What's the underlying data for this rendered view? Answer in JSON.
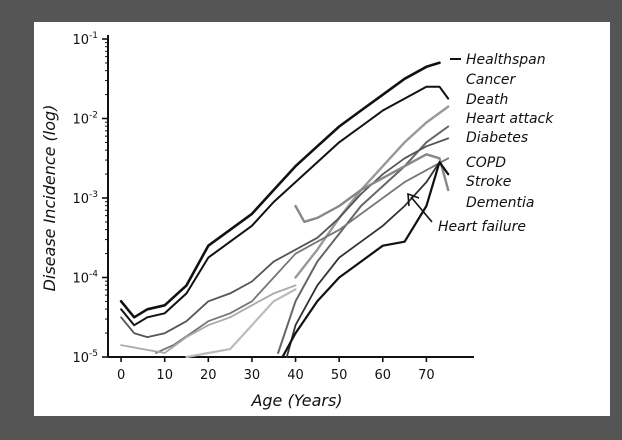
{
  "chart_data": {
    "type": "line",
    "xlabel": "Age (Years)",
    "ylabel": "Disease Incidence (log)",
    "xlim": [
      -3,
      80
    ],
    "ylim": [
      -5,
      -1
    ],
    "y_scale": "log",
    "x_ticks": [
      "0",
      "10",
      "20",
      "30",
      "40",
      "50",
      "60",
      "70"
    ],
    "x_tick_values": [
      0,
      10,
      20,
      30,
      40,
      50,
      60,
      70
    ],
    "y_ticks": [
      {
        "base": "10",
        "exp": "-1",
        "value": -1
      },
      {
        "base": "10",
        "exp": "-2",
        "value": -2
      },
      {
        "base": "10",
        "exp": "-3",
        "value": -3
      },
      {
        "base": "10",
        "exp": "-4",
        "value": -4
      },
      {
        "base": "10",
        "exp": "-5",
        "value": -5
      }
    ],
    "grid": false,
    "series": [
      {
        "name": "Healthspan",
        "color": "#111111",
        "width": 2.6,
        "x": [
          0,
          3,
          6,
          10,
          15,
          20,
          25,
          30,
          35,
          40,
          45,
          50,
          55,
          60,
          65,
          70,
          73
        ],
        "y": [
          -4.3,
          -4.5,
          -4.4,
          -4.35,
          -4.1,
          -3.6,
          -3.4,
          -3.2,
          -2.9,
          -2.6,
          -2.35,
          -2.1,
          -1.9,
          -1.7,
          -1.5,
          -1.35,
          -1.3
        ]
      },
      {
        "name": "Cancer",
        "color": "#111111",
        "width": 2,
        "x": [
          0,
          3,
          6,
          10,
          15,
          20,
          25,
          30,
          35,
          40,
          45,
          50,
          55,
          60,
          65,
          70,
          73,
          75
        ],
        "y": [
          -4.4,
          -4.6,
          -4.5,
          -4.45,
          -4.2,
          -3.75,
          -3.55,
          -3.35,
          -3.05,
          -2.8,
          -2.55,
          -2.3,
          -2.1,
          -1.9,
          -1.75,
          -1.6,
          -1.6,
          -1.75
        ]
      },
      {
        "name": "Death",
        "color": "#999999",
        "width": 2.4,
        "x": [
          40,
          45,
          50,
          55,
          60,
          65,
          70,
          75
        ],
        "y": [
          -4.0,
          -3.65,
          -3.25,
          -2.9,
          -2.6,
          -2.3,
          -2.05,
          -1.85
        ]
      },
      {
        "name": "Heart attack",
        "color": "#666666",
        "width": 2,
        "x": [
          36,
          40,
          45,
          50,
          55,
          60,
          65,
          70,
          75
        ],
        "y": [
          -4.95,
          -4.3,
          -3.8,
          -3.45,
          -3.1,
          -2.85,
          -2.6,
          -2.3,
          -2.1
        ]
      },
      {
        "name": "Diabetes",
        "color": "#555555",
        "width": 1.8,
        "x": [
          0,
          3,
          6,
          10,
          15,
          20,
          25,
          30,
          35,
          40,
          45,
          50,
          55,
          60,
          65,
          70,
          75
        ],
        "y": [
          -4.5,
          -4.7,
          -4.75,
          -4.7,
          -4.55,
          -4.3,
          -4.2,
          -4.05,
          -3.8,
          -3.65,
          -3.5,
          -3.25,
          -2.95,
          -2.7,
          -2.5,
          -2.35,
          -2.25
        ]
      },
      {
        "name": "COPD",
        "color": "#888888",
        "width": 2.4,
        "x": [
          40,
          42,
          45,
          50,
          55,
          60,
          65,
          70,
          73,
          75
        ],
        "y": [
          -3.1,
          -3.3,
          -3.25,
          -3.1,
          -2.9,
          -2.75,
          -2.6,
          -2.45,
          -2.5,
          -2.9
        ]
      },
      {
        "name": "Stroke",
        "color": "#777777",
        "width": 1.8,
        "x": [
          8,
          12,
          16,
          20,
          25,
          30,
          35,
          40,
          45,
          50,
          55,
          60,
          65,
          70,
          75
        ],
        "y": [
          -4.95,
          -4.85,
          -4.7,
          -4.55,
          -4.45,
          -4.3,
          -4.0,
          -3.7,
          -3.55,
          -3.4,
          -3.2,
          -3.0,
          -2.8,
          -2.65,
          -2.5
        ]
      },
      {
        "name": "Dementia",
        "color": "#333333",
        "width": 1.8,
        "x": [
          38,
          40,
          45,
          50,
          55,
          60,
          65,
          70,
          73
        ],
        "y": [
          -5.0,
          -4.6,
          -4.1,
          -3.75,
          -3.55,
          -3.35,
          -3.1,
          -2.8,
          -2.55
        ]
      },
      {
        "name": "Heart failure",
        "color": "#111111",
        "width": 2.2,
        "x": [
          37,
          40,
          45,
          50,
          55,
          60,
          65,
          70,
          73,
          75
        ],
        "y": [
          -5.0,
          -4.7,
          -4.3,
          -4.0,
          -3.8,
          -3.6,
          -3.55,
          -3.1,
          -2.55,
          -2.7
        ]
      },
      {
        "name": "",
        "color": "#aaaaaa",
        "width": 1.8,
        "x": [
          0,
          5,
          10,
          15,
          20,
          25,
          30,
          35,
          40
        ],
        "y": [
          -4.85,
          -4.9,
          -4.95,
          -4.75,
          -4.6,
          -4.5,
          -4.35,
          -4.2,
          -4.1
        ]
      },
      {
        "name": "",
        "color": "#bbbbbb",
        "width": 2.2,
        "x": [
          15,
          20,
          25,
          30,
          35,
          40
        ],
        "y": [
          -5.0,
          -4.95,
          -4.9,
          -4.6,
          -4.3,
          -4.15
        ]
      }
    ],
    "labels": [
      {
        "series": "Healthspan",
        "text": "Healthspan"
      },
      {
        "series": "Cancer",
        "text": "Cancer"
      },
      {
        "series": "Death",
        "text": "Death"
      },
      {
        "series": "Heart attack",
        "text": "Heart attack"
      },
      {
        "series": "Diabetes",
        "text": "Diabetes"
      },
      {
        "series": "COPD",
        "text": "COPD"
      },
      {
        "series": "Stroke",
        "text": "Stroke"
      },
      {
        "series": "Dementia",
        "text": "Dementia"
      },
      {
        "series": "Heart failure",
        "text": "Heart failure"
      }
    ]
  }
}
